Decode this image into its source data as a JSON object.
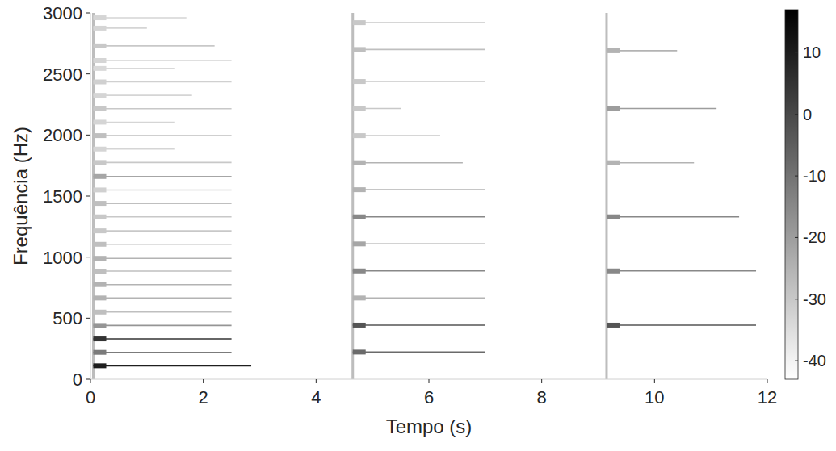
{
  "chart_data": {
    "type": "spectrogram",
    "xlabel": "Tempo (s)",
    "ylabel": "Frequência (Hz)",
    "xlim": [
      0,
      12
    ],
    "xticks": [
      0,
      2,
      4,
      6,
      8,
      10,
      12
    ],
    "ylim": [
      0,
      3000
    ],
    "yticks": [
      0,
      500,
      1000,
      1500,
      2000,
      2500,
      3000
    ],
    "colorbar": {
      "range": [
        -43,
        17
      ],
      "ticks": [
        10,
        0,
        -10,
        -20,
        -30,
        -40
      ]
    },
    "notes": [
      {
        "onset": 0.05,
        "partials": [
          {
            "freq": 110,
            "end": 2.85,
            "level": 10
          },
          {
            "freq": 220,
            "end": 2.5,
            "level": -12
          },
          {
            "freq": 330,
            "end": 2.5,
            "level": 5
          },
          {
            "freq": 440,
            "end": 2.5,
            "level": -18
          },
          {
            "freq": 550,
            "end": 2.5,
            "level": -28
          },
          {
            "freq": 665,
            "end": 2.5,
            "level": -25
          },
          {
            "freq": 775,
            "end": 2.5,
            "level": -25
          },
          {
            "freq": 885,
            "end": 2.5,
            "level": -28
          },
          {
            "freq": 990,
            "end": 2.5,
            "level": -25
          },
          {
            "freq": 1105,
            "end": 2.5,
            "level": -28
          },
          {
            "freq": 1215,
            "end": 2.5,
            "level": -30
          },
          {
            "freq": 1330,
            "end": 2.5,
            "level": -30
          },
          {
            "freq": 1440,
            "end": 2.5,
            "level": -28
          },
          {
            "freq": 1550,
            "end": 2.5,
            "level": -32
          },
          {
            "freq": 1660,
            "end": 2.5,
            "level": -22
          },
          {
            "freq": 1775,
            "end": 2.5,
            "level": -30
          },
          {
            "freq": 1885,
            "end": 1.5,
            "level": -33
          },
          {
            "freq": 1995,
            "end": 2.5,
            "level": -28
          },
          {
            "freq": 2105,
            "end": 1.5,
            "level": -33
          },
          {
            "freq": 2215,
            "end": 2.5,
            "level": -30
          },
          {
            "freq": 2325,
            "end": 1.8,
            "level": -33
          },
          {
            "freq": 2435,
            "end": 2.5,
            "level": -32
          },
          {
            "freq": 2545,
            "end": 1.5,
            "level": -34
          },
          {
            "freq": 2610,
            "end": 2.5,
            "level": -33
          },
          {
            "freq": 2730,
            "end": 2.2,
            "level": -30
          },
          {
            "freq": 2875,
            "end": 1.0,
            "level": -33
          },
          {
            "freq": 2960,
            "end": 1.7,
            "level": -33
          }
        ]
      },
      {
        "onset": 4.65,
        "partials": [
          {
            "freq": 222,
            "end": 7.0,
            "level": -8
          },
          {
            "freq": 443,
            "end": 7.0,
            "level": -3
          },
          {
            "freq": 665,
            "end": 7.0,
            "level": -25
          },
          {
            "freq": 887,
            "end": 7.0,
            "level": -15
          },
          {
            "freq": 1108,
            "end": 7.0,
            "level": -22
          },
          {
            "freq": 1330,
            "end": 7.0,
            "level": -15
          },
          {
            "freq": 1552,
            "end": 7.0,
            "level": -25
          },
          {
            "freq": 1773,
            "end": 6.6,
            "level": -25
          },
          {
            "freq": 1995,
            "end": 6.2,
            "level": -30
          },
          {
            "freq": 2217,
            "end": 5.5,
            "level": -30
          },
          {
            "freq": 2438,
            "end": 7.0,
            "level": -30
          },
          {
            "freq": 2700,
            "end": 7.0,
            "level": -28
          },
          {
            "freq": 2920,
            "end": 7.0,
            "level": -30
          }
        ]
      },
      {
        "onset": 9.15,
        "partials": [
          {
            "freq": 443,
            "end": 11.8,
            "level": -3
          },
          {
            "freq": 887,
            "end": 11.8,
            "level": -15
          },
          {
            "freq": 1330,
            "end": 11.5,
            "level": -15
          },
          {
            "freq": 1773,
            "end": 10.7,
            "level": -25
          },
          {
            "freq": 2217,
            "end": 11.1,
            "level": -20
          },
          {
            "freq": 2690,
            "end": 10.4,
            "level": -25
          }
        ]
      }
    ]
  }
}
